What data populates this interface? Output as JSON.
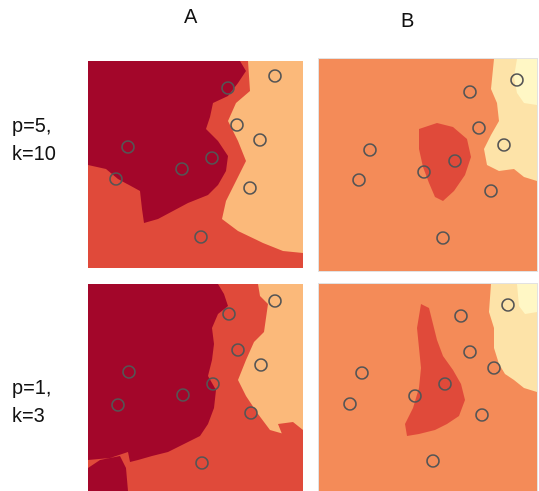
{
  "columns": [
    "A",
    "B"
  ],
  "rows": [
    {
      "line1": "p=5,",
      "line2": "k=10"
    },
    {
      "line1": "p=1,",
      "line2": "k=3"
    }
  ],
  "colors": {
    "dark_red": "#a3062a",
    "red": "#e04a3a",
    "orange": "#f48b58",
    "peach": "#fbb97a",
    "light_yellow": "#fde3a8",
    "pale_yellow": "#fff7c5",
    "marker_stroke": "#555555"
  }
}
